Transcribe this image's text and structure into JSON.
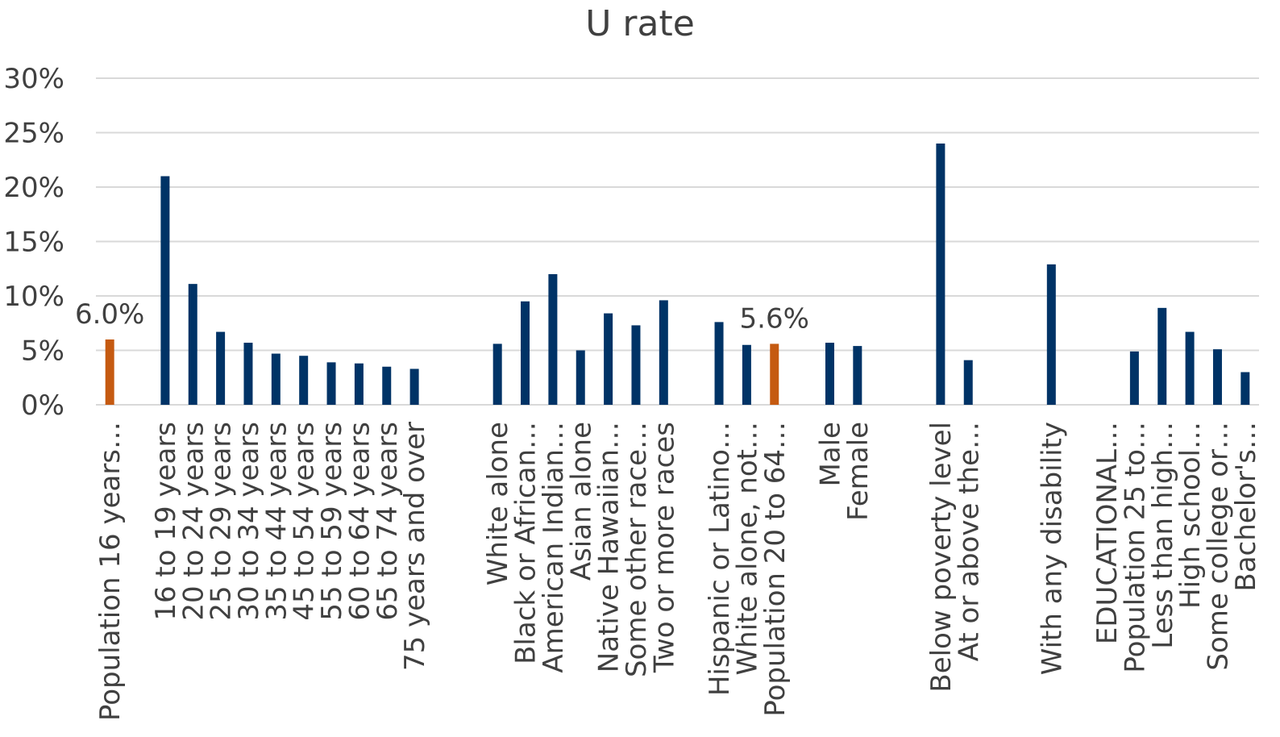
{
  "chart_data": {
    "type": "bar",
    "title": "U rate",
    "xlabel": "",
    "ylabel": "",
    "ylim": [
      0,
      0.3
    ],
    "yticks": [
      "0%",
      "5%",
      "10%",
      "15%",
      "20%",
      "25%",
      "30%"
    ],
    "grid": true,
    "legend": "none",
    "colors": {
      "default": "#003366",
      "highlight": "#C55A11"
    },
    "categories": [
      "Population 16 years…",
      "",
      "16 to 19 years",
      "20 to 24 years",
      "25 to 29 years",
      "30 to 34 years",
      "35 to 44 years",
      "45 to 54 years",
      "55 to 59 years",
      "60 to 64 years",
      "65 to 74 years",
      "75 years and over",
      "",
      "",
      "White alone",
      "Black or African…",
      "American Indian…",
      "Asian alone",
      "Native Hawaiian…",
      "Some other race…",
      "Two or more races",
      "",
      "Hispanic or Latino…",
      "White alone, not…",
      "Population 20 to 64…",
      "",
      "Male",
      "Female",
      "",
      "",
      "Below poverty level",
      "At or above the…",
      "",
      "",
      "With any disability",
      "",
      "EDUCATIONAL…",
      "Population 25 to…",
      "Less than high…",
      "High school…",
      "Some college or…",
      "Bachelor's…"
    ],
    "values": [
      0.06,
      null,
      0.21,
      0.111,
      0.067,
      0.057,
      0.047,
      0.045,
      0.039,
      0.038,
      0.035,
      0.033,
      null,
      null,
      0.056,
      0.095,
      0.12,
      0.05,
      0.084,
      0.073,
      0.096,
      null,
      0.076,
      0.055,
      0.056,
      null,
      0.057,
      0.054,
      null,
      null,
      0.24,
      0.041,
      null,
      null,
      0.129,
      null,
      null,
      0.049,
      0.089,
      0.067,
      0.051,
      0.03
    ],
    "highlight": [
      0,
      24
    ],
    "data_labels": [
      {
        "index": 0,
        "text": "6.0%"
      },
      {
        "index": 24,
        "text": "5.6%"
      }
    ]
  }
}
